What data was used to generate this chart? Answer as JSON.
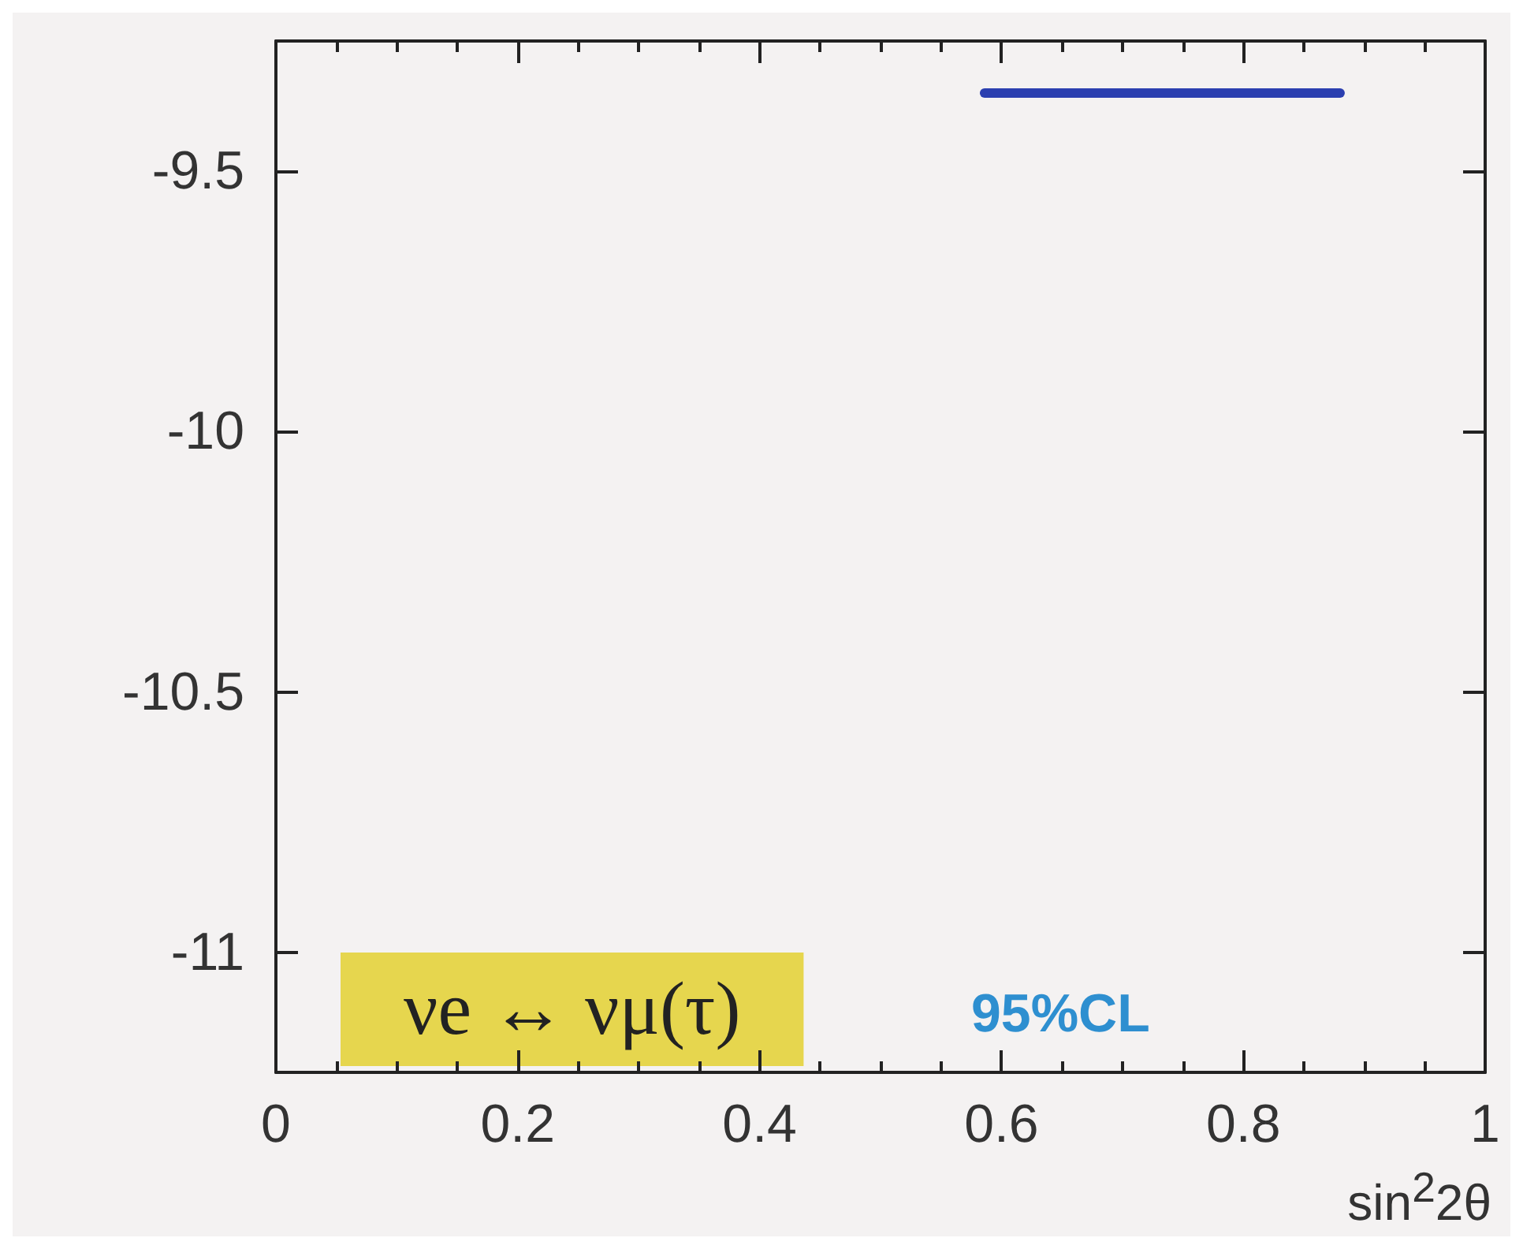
{
  "chart_data": {
    "type": "line",
    "xlabel": "sin$^{2}$2θ",
    "annotations": [
      "νe ↔ νμ(τ)",
      "95%CL"
    ],
    "series": [
      {
        "color": "#2b3fb0",
        "x": [
          0.586,
          0.88
        ],
        "values": [
          -9.35,
          -9.35
        ]
      }
    ],
    "xlim": [
      0,
      1
    ],
    "xticks": [
      0,
      0.2,
      0.4,
      0.6,
      0.8,
      1
    ],
    "ylim": [
      -11.23,
      -9.25
    ],
    "yticks": [
      -11,
      -10.5,
      -10,
      -9.5
    ],
    "grid": false,
    "marker": "none",
    "line_style": "solid"
  }
}
